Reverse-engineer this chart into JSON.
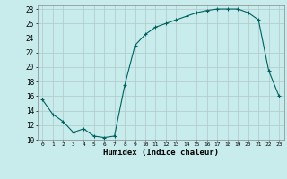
{
  "x": [
    0,
    1,
    2,
    3,
    4,
    5,
    6,
    7,
    8,
    9,
    10,
    11,
    12,
    13,
    14,
    15,
    16,
    17,
    18,
    19,
    20,
    21,
    22,
    23
  ],
  "y": [
    15.5,
    13.5,
    12.5,
    11.0,
    11.5,
    10.5,
    10.3,
    10.5,
    17.5,
    23.0,
    24.5,
    25.5,
    26.0,
    26.5,
    27.0,
    27.5,
    27.8,
    28.0,
    28.0,
    28.0,
    27.5,
    26.5,
    19.5,
    16.0
  ],
  "line_color": "#006060",
  "marker": "+",
  "marker_size": 3,
  "bg_color": "#c8ecec",
  "grid_color": "#b0c8c8",
  "xlabel": "Humidex (Indice chaleur)",
  "ylim": [
    10,
    28.5
  ],
  "xlim": [
    -0.5,
    23.5
  ],
  "yticks": [
    10,
    12,
    14,
    16,
    18,
    20,
    22,
    24,
    26,
    28
  ],
  "xticks": [
    0,
    1,
    2,
    3,
    4,
    5,
    6,
    7,
    8,
    9,
    10,
    11,
    12,
    13,
    14,
    15,
    16,
    17,
    18,
    19,
    20,
    21,
    22,
    23
  ]
}
